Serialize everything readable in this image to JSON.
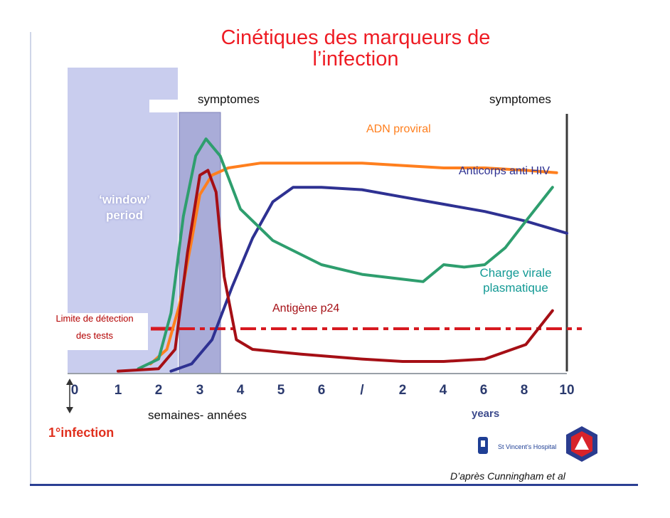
{
  "page": {
    "title_line1": "Cinétiques des marqueurs de",
    "title_line2": "l’infection",
    "caption": "D’après Cunningham et al",
    "hospital": "St Vincent’s Hospital"
  },
  "chart_data": {
    "type": "line",
    "labels": {
      "symptomes_left": "symptomes",
      "symptomes_right": "symptomes",
      "window_line1": "‘window’",
      "window_line2": "period",
      "limite_line1": "Limite de détection",
      "limite_line2": "des tests",
      "weeks_years": "semaines- années",
      "years": "years",
      "first_infection": "1°infection"
    },
    "x_ticks_weeks": [
      "0",
      "1",
      "2",
      "3",
      "4",
      "5",
      "6",
      "/"
    ],
    "x_ticks_years": [
      "2",
      "4",
      "6",
      "8",
      "10"
    ],
    "series": [
      {
        "name": "ADN proviral",
        "color": "#ff7f1e",
        "points": [
          [
            1.8,
            0.04
          ],
          [
            2.2,
            0.1
          ],
          [
            2.5,
            0.28
          ],
          [
            2.8,
            0.55
          ],
          [
            3.0,
            0.74
          ],
          [
            3.3,
            0.82
          ],
          [
            3.7,
            0.85
          ],
          [
            4.5,
            0.87
          ],
          [
            6,
            0.87
          ],
          [
            7,
            0.87
          ],
          [
            2,
            0.86
          ],
          [
            4,
            0.85
          ],
          [
            6,
            0.85
          ],
          [
            8,
            0.84
          ],
          [
            9.5,
            0.83
          ]
        ]
      },
      {
        "name": "Anticorps anti HIV",
        "color": "#2e3192",
        "points": [
          [
            2.3,
            0.01
          ],
          [
            2.8,
            0.04
          ],
          [
            3.3,
            0.14
          ],
          [
            3.8,
            0.36
          ],
          [
            4.3,
            0.56
          ],
          [
            4.8,
            0.71
          ],
          [
            5.3,
            0.77
          ],
          [
            6,
            0.77
          ],
          [
            7,
            0.76
          ],
          [
            2,
            0.73
          ],
          [
            4,
            0.7
          ],
          [
            6,
            0.67
          ],
          [
            8,
            0.63
          ],
          [
            10,
            0.58
          ]
        ]
      },
      {
        "name": "Charge virale plasmatique",
        "color": "#2e9e6e",
        "points": [
          [
            1.5,
            0.02
          ],
          [
            2.0,
            0.06
          ],
          [
            2.3,
            0.25
          ],
          [
            2.6,
            0.65
          ],
          [
            2.9,
            0.9
          ],
          [
            3.15,
            0.97
          ],
          [
            3.5,
            0.9
          ],
          [
            4.0,
            0.68
          ],
          [
            4.8,
            0.55
          ],
          [
            6,
            0.45
          ],
          [
            7,
            0.41
          ],
          [
            2,
            0.39
          ],
          [
            3,
            0.38
          ],
          [
            4,
            0.45
          ],
          [
            5,
            0.44
          ],
          [
            6,
            0.45
          ],
          [
            7,
            0.52
          ],
          [
            8,
            0.63
          ],
          [
            9.3,
            0.77
          ]
        ]
      },
      {
        "name": "Antigène p24",
        "color": "#a50f15",
        "points": [
          [
            1.0,
            0.01
          ],
          [
            2.0,
            0.02
          ],
          [
            2.4,
            0.1
          ],
          [
            2.7,
            0.5
          ],
          [
            3.0,
            0.82
          ],
          [
            3.2,
            0.84
          ],
          [
            3.4,
            0.75
          ],
          [
            3.6,
            0.4
          ],
          [
            3.9,
            0.14
          ],
          [
            4.3,
            0.1
          ],
          [
            5.5,
            0.08
          ],
          [
            7,
            0.06
          ],
          [
            2,
            0.05
          ],
          [
            4,
            0.05
          ],
          [
            6,
            0.06
          ],
          [
            8,
            0.12
          ],
          [
            9.3,
            0.26
          ]
        ]
      }
    ],
    "annotation_colors": {
      "window": "#c9cdee",
      "symptom_band": "#a9acd8",
      "threshold": "#d71920"
    }
  }
}
